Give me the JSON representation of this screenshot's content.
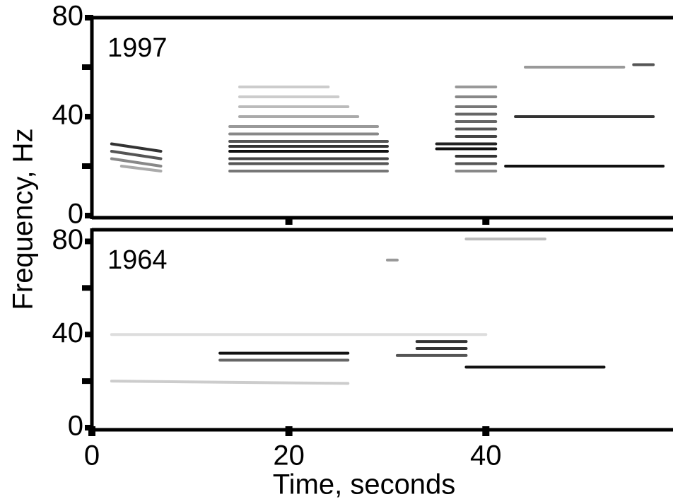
{
  "chart_data": [
    {
      "type": "spectrogram",
      "label": "1997",
      "ylabel": "Frequency, Hz",
      "xlim": [
        0,
        59
      ],
      "ylim": [
        0,
        80
      ],
      "yticks": [
        0,
        40,
        80
      ],
      "yminor": [
        20,
        60
      ],
      "xtick_marks": [
        20,
        40
      ],
      "traces": [
        {
          "x": [
            2,
            7
          ],
          "values": [
            29,
            26
          ],
          "color": "#333"
        },
        {
          "x": [
            2,
            7
          ],
          "values": [
            26,
            23
          ],
          "color": "#555"
        },
        {
          "x": [
            2,
            7
          ],
          "values": [
            23,
            20
          ],
          "color": "#888"
        },
        {
          "x": [
            3,
            7
          ],
          "values": [
            20,
            18
          ],
          "color": "#aaa"
        },
        {
          "x": [
            14,
            30
          ],
          "values": [
            26,
            26
          ],
          "color": "#111"
        },
        {
          "x": [
            14,
            30
          ],
          "values": [
            28,
            28
          ],
          "color": "#333"
        },
        {
          "x": [
            14,
            30
          ],
          "values": [
            23,
            23
          ],
          "color": "#444"
        },
        {
          "x": [
            14,
            30
          ],
          "values": [
            30,
            30
          ],
          "color": "#555"
        },
        {
          "x": [
            14,
            30
          ],
          "values": [
            21,
            21
          ],
          "color": "#555"
        },
        {
          "x": [
            14,
            30
          ],
          "values": [
            18,
            18
          ],
          "color": "#777"
        },
        {
          "x": [
            14,
            29
          ],
          "values": [
            33,
            33
          ],
          "color": "#888"
        },
        {
          "x": [
            14,
            29
          ],
          "values": [
            36,
            36
          ],
          "color": "#999"
        },
        {
          "x": [
            15,
            27
          ],
          "values": [
            40,
            40
          ],
          "color": "#aaa"
        },
        {
          "x": [
            15,
            26
          ],
          "values": [
            44,
            44
          ],
          "color": "#bbb"
        },
        {
          "x": [
            15,
            25
          ],
          "values": [
            48,
            48
          ],
          "color": "#ccc"
        },
        {
          "x": [
            15,
            24
          ],
          "values": [
            52,
            52
          ],
          "color": "#ccc"
        },
        {
          "x": [
            35,
            41
          ],
          "values": [
            27,
            27
          ],
          "color": "#111"
        },
        {
          "x": [
            35,
            41
          ],
          "values": [
            29,
            29
          ],
          "color": "#222"
        },
        {
          "x": [
            37,
            41
          ],
          "values": [
            24,
            24
          ],
          "color": "#333"
        },
        {
          "x": [
            37,
            41
          ],
          "values": [
            32,
            32
          ],
          "color": "#444"
        },
        {
          "x": [
            37,
            41
          ],
          "values": [
            21,
            21
          ],
          "color": "#555"
        },
        {
          "x": [
            37,
            41
          ],
          "values": [
            35,
            35
          ],
          "color": "#555"
        },
        {
          "x": [
            37,
            41
          ],
          "values": [
            38,
            38
          ],
          "color": "#666"
        },
        {
          "x": [
            37,
            41
          ],
          "values": [
            41,
            41
          ],
          "color": "#666"
        },
        {
          "x": [
            37,
            41
          ],
          "values": [
            44,
            44
          ],
          "color": "#777"
        },
        {
          "x": [
            37,
            41
          ],
          "values": [
            48,
            48
          ],
          "color": "#888"
        },
        {
          "x": [
            37,
            41
          ],
          "values": [
            18,
            18
          ],
          "color": "#888"
        },
        {
          "x": [
            37,
            41
          ],
          "values": [
            52,
            52
          ],
          "color": "#999"
        },
        {
          "x": [
            42,
            58
          ],
          "values": [
            20,
            20
          ],
          "color": "#111"
        },
        {
          "x": [
            43,
            57
          ],
          "values": [
            40,
            40
          ],
          "color": "#333"
        },
        {
          "x": [
            44,
            54
          ],
          "values": [
            60,
            60
          ],
          "color": "#999"
        },
        {
          "x": [
            55,
            57
          ],
          "values": [
            61,
            61
          ],
          "color": "#555"
        }
      ]
    },
    {
      "type": "spectrogram",
      "label": "1964",
      "xlabel": "Time, seconds",
      "xlim": [
        0,
        59
      ],
      "ylim": [
        0,
        85
      ],
      "yticks": [
        0,
        40,
        80
      ],
      "yminor": [
        20,
        60
      ],
      "xticks": [
        0,
        20,
        40
      ],
      "traces": [
        {
          "x": [
            13,
            26
          ],
          "values": [
            32,
            32
          ],
          "color": "#111"
        },
        {
          "x": [
            13,
            26
          ],
          "values": [
            29,
            29
          ],
          "color": "#666"
        },
        {
          "x": [
            33,
            38
          ],
          "values": [
            37,
            37
          ],
          "color": "#333"
        },
        {
          "x": [
            33,
            38
          ],
          "values": [
            34,
            34
          ],
          "color": "#333"
        },
        {
          "x": [
            31,
            38
          ],
          "values": [
            31,
            31
          ],
          "color": "#555"
        },
        {
          "x": [
            38,
            52
          ],
          "values": [
            26,
            26
          ],
          "color": "#111"
        },
        {
          "x": [
            2,
            26
          ],
          "values": [
            20,
            19
          ],
          "color": "#ccc"
        },
        {
          "x": [
            2,
            40
          ],
          "values": [
            40,
            40
          ],
          "color": "#ddd"
        },
        {
          "x": [
            38,
            46
          ],
          "values": [
            81,
            81
          ],
          "color": "#bbb"
        },
        {
          "x": [
            30,
            31
          ],
          "values": [
            72,
            72
          ],
          "color": "#999"
        }
      ]
    }
  ]
}
